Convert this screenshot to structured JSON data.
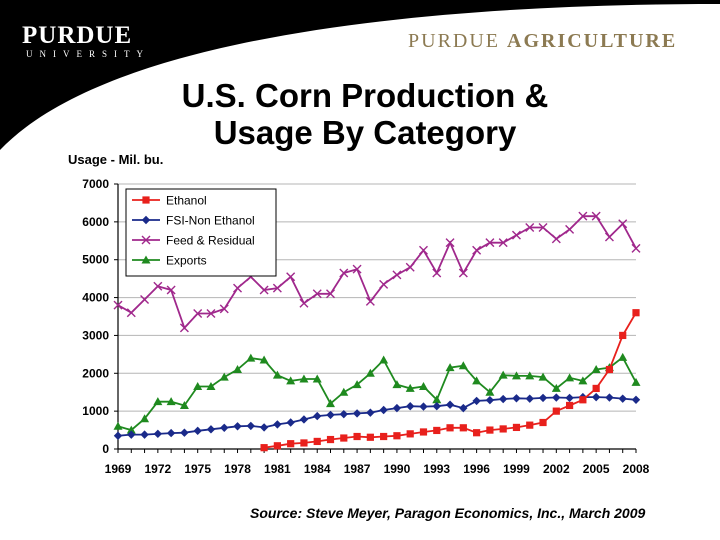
{
  "header": {
    "university": "PURDUE",
    "university_sub": "UNIVERSITY",
    "dept_first": "PURDUE",
    "dept_second": "AGRICULTURE"
  },
  "title_line1": "U.S. Corn Production &",
  "title_line2": "Usage By Category",
  "source": "Source: Steve Meyer, Paragon Economics, Inc., March 2009",
  "colors": {
    "ethanol": "#e8201c",
    "fsi": "#1a2a8a",
    "feed": "#a0288c",
    "exports": "#1f8a1f"
  },
  "chart_data": {
    "type": "line",
    "ylabel": "Usage - Mil. bu.",
    "xlabel": "",
    "xlim": [
      1969,
      2008
    ],
    "ylim": [
      0,
      7000
    ],
    "yticks": [
      "0",
      "1000",
      "2000",
      "3000",
      "4000",
      "5000",
      "6000",
      "7000"
    ],
    "xticks": [
      "1969",
      "1972",
      "1975",
      "1978",
      "1981",
      "1984",
      "1987",
      "1990",
      "1993",
      "1996",
      "1999",
      "2002",
      "2005",
      "2008"
    ],
    "grid": "horizontal",
    "legend_position": "top-left",
    "series": [
      {
        "name": "Ethanol",
        "marker": "square",
        "x": [
          1980,
          1981,
          1982,
          1983,
          1984,
          1985,
          1986,
          1987,
          1988,
          1989,
          1990,
          1991,
          1992,
          1993,
          1994,
          1995,
          1996,
          1997,
          1998,
          1999,
          2000,
          2001,
          2002,
          2003,
          2004,
          2005,
          2006,
          2007,
          2008
        ],
        "values": [
          35,
          85,
          140,
          160,
          200,
          250,
          290,
          330,
          310,
          330,
          350,
          400,
          450,
          490,
          560,
          560,
          430,
          500,
          530,
          570,
          630,
          700,
          1000,
          1150,
          1300,
          1600,
          2100,
          3000,
          3600
        ]
      },
      {
        "name": "FSI-Non Ethanol",
        "marker": "diamond",
        "x": [
          1969,
          1970,
          1971,
          1972,
          1973,
          1974,
          1975,
          1976,
          1977,
          1978,
          1979,
          1980,
          1981,
          1982,
          1983,
          1984,
          1985,
          1986,
          1987,
          1988,
          1989,
          1990,
          1991,
          1992,
          1993,
          1994,
          1995,
          1996,
          1997,
          1998,
          1999,
          2000,
          2001,
          2002,
          2003,
          2004,
          2005,
          2006,
          2007,
          2008
        ],
        "values": [
          350,
          380,
          380,
          400,
          420,
          430,
          480,
          520,
          560,
          600,
          610,
          570,
          650,
          700,
          780,
          870,
          900,
          920,
          940,
          960,
          1030,
          1080,
          1130,
          1120,
          1130,
          1170,
          1080,
          1270,
          1290,
          1320,
          1340,
          1330,
          1350,
          1360,
          1350,
          1370,
          1370,
          1360,
          1330,
          1300
        ]
      },
      {
        "name": "Feed & Residual",
        "marker": "x",
        "x": [
          1969,
          1970,
          1971,
          1972,
          1973,
          1974,
          1975,
          1976,
          1977,
          1978,
          1979,
          1980,
          1981,
          1982,
          1983,
          1984,
          1985,
          1986,
          1987,
          1988,
          1989,
          1990,
          1991,
          1992,
          1993,
          1994,
          1995,
          1996,
          1997,
          1998,
          1999,
          2000,
          2001,
          2002,
          2003,
          2004,
          2005,
          2006,
          2007,
          2008
        ],
        "values": [
          3800,
          3600,
          3950,
          4300,
          4200,
          3200,
          3580,
          3580,
          3700,
          4250,
          4550,
          4200,
          4250,
          4550,
          3850,
          4100,
          4100,
          4650,
          4750,
          3900,
          4350,
          4600,
          4800,
          5250,
          4650,
          5450,
          4650,
          5250,
          5450,
          5450,
          5650,
          5850,
          5850,
          5550,
          5800,
          6150,
          6150,
          5600,
          5950,
          5300
        ]
      },
      {
        "name": "Exports",
        "marker": "triangle",
        "x": [
          1969,
          1970,
          1971,
          1972,
          1973,
          1974,
          1975,
          1976,
          1977,
          1978,
          1979,
          1980,
          1981,
          1982,
          1983,
          1984,
          1985,
          1986,
          1987,
          1988,
          1989,
          1990,
          1991,
          1992,
          1993,
          1994,
          1995,
          1996,
          1997,
          1998,
          1999,
          2000,
          2001,
          2002,
          2003,
          2004,
          2005,
          2006,
          2007,
          2008
        ],
        "values": [
          600,
          500,
          800,
          1250,
          1250,
          1150,
          1650,
          1650,
          1900,
          2100,
          2400,
          2350,
          1950,
          1800,
          1850,
          1850,
          1200,
          1500,
          1700,
          2000,
          2350,
          1700,
          1600,
          1650,
          1300,
          2150,
          2200,
          1800,
          1500,
          1950,
          1930,
          1930,
          1900,
          1600,
          1880,
          1800,
          2100,
          2150,
          2420,
          1760
        ]
      }
    ]
  }
}
